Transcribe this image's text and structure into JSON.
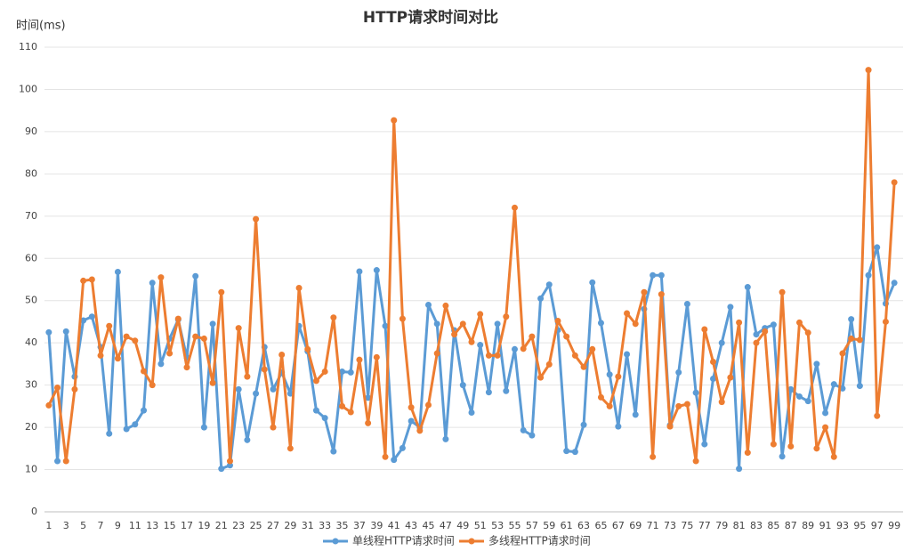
{
  "chart_data": {
    "type": "line",
    "title": "HTTP请求时间对比",
    "y_label": "时间(ms)",
    "categories": [
      "1",
      null,
      "3",
      null,
      "5",
      null,
      "7",
      null,
      "9",
      null,
      "11",
      null,
      "13",
      null,
      "15",
      null,
      "17",
      null,
      "19",
      null,
      "21",
      null,
      "23",
      null,
      "25",
      null,
      "27",
      null,
      "29",
      null,
      "31",
      null,
      "33",
      null,
      "35",
      null,
      "37",
      null,
      "39",
      null,
      "41",
      null,
      "43",
      null,
      "45",
      null,
      "47",
      null,
      "49",
      null,
      "51",
      null,
      "53",
      null,
      "55",
      null,
      "57",
      null,
      "59",
      null,
      "61",
      null,
      "63",
      null,
      "65",
      null,
      "67",
      null,
      "69",
      null,
      "71",
      null,
      "73",
      null,
      "75",
      null,
      "77",
      null,
      "79",
      null,
      "81",
      null,
      "83",
      null,
      "85",
      null,
      "87",
      null,
      "89",
      null,
      "91",
      null,
      "93",
      null,
      "95",
      null,
      "97",
      null,
      "99"
    ],
    "series": [
      {
        "name": "单线程HTTP请求时间",
        "color": "#5b9bd5",
        "values": [
          42.5,
          12,
          42.7,
          32,
          45.3,
          46.2,
          39,
          18.5,
          56.8,
          19.6,
          20.7,
          24,
          54.2,
          35,
          41,
          45.5,
          36.5,
          55.8,
          20,
          44.5,
          10.2,
          11,
          29,
          17,
          28,
          39,
          29,
          33,
          28,
          44,
          38,
          24,
          22.2,
          14.3,
          33.2,
          33,
          56.9,
          27,
          57.2,
          44,
          12.3,
          15.1,
          21.5,
          20,
          49,
          44.5,
          17.2,
          43,
          30,
          23.5,
          39.5,
          28.3,
          44.5,
          28.6,
          38.5,
          19.3,
          18.1,
          50.5,
          53.8,
          43,
          14.4,
          14.2,
          20.6,
          54.3,
          44.7,
          32.5,
          20.2,
          37.3,
          23,
          48,
          56,
          56,
          20.5,
          33,
          49.2,
          28.2,
          16,
          31.5,
          40,
          48.5,
          10.2,
          53.2,
          42,
          43.5,
          44.3,
          13.1,
          29,
          27.3,
          26.2,
          35,
          23.4,
          30.2,
          29.2,
          45.6,
          29.8,
          56,
          62.6,
          49.3,
          54.2
        ]
      },
      {
        "name": "多线程HTTP请求时间",
        "color": "#ed7d31",
        "values": [
          25.2,
          29.4,
          12,
          29,
          54.7,
          55,
          37,
          44,
          36.3,
          41.5,
          40.5,
          33.3,
          30,
          55.5,
          37.5,
          45.7,
          34.2,
          41.5,
          41,
          30.5,
          52,
          12,
          43.5,
          32,
          69.3,
          33.7,
          20,
          37.2,
          15,
          53,
          38.5,
          31,
          33.2,
          46,
          25,
          23.6,
          36,
          21,
          36.6,
          13,
          92.7,
          45.7,
          24.7,
          19.2,
          25.3,
          37.5,
          48.8,
          42,
          44.5,
          40.2,
          46.8,
          37,
          37,
          46.2,
          72,
          38.6,
          41.5,
          31.8,
          34.9,
          45.2,
          41.5,
          37,
          34.3,
          38.5,
          27.1,
          25,
          32,
          47,
          44.5,
          52,
          13,
          51.5,
          20.2,
          25,
          25.5,
          12,
          43.2,
          35.5,
          26,
          31.8,
          44.8,
          14,
          40,
          42.7,
          16,
          52,
          15.5,
          44.8,
          42.4,
          15,
          20,
          13,
          37.5,
          41,
          40.7,
          104.6,
          22.7,
          45,
          78
        ]
      }
    ],
    "ylim": [
      0,
      110
    ],
    "yticks": [
      0,
      10,
      20,
      30,
      40,
      50,
      60,
      70,
      80,
      90,
      100,
      110
    ],
    "grid": true,
    "legend": "bottom"
  }
}
